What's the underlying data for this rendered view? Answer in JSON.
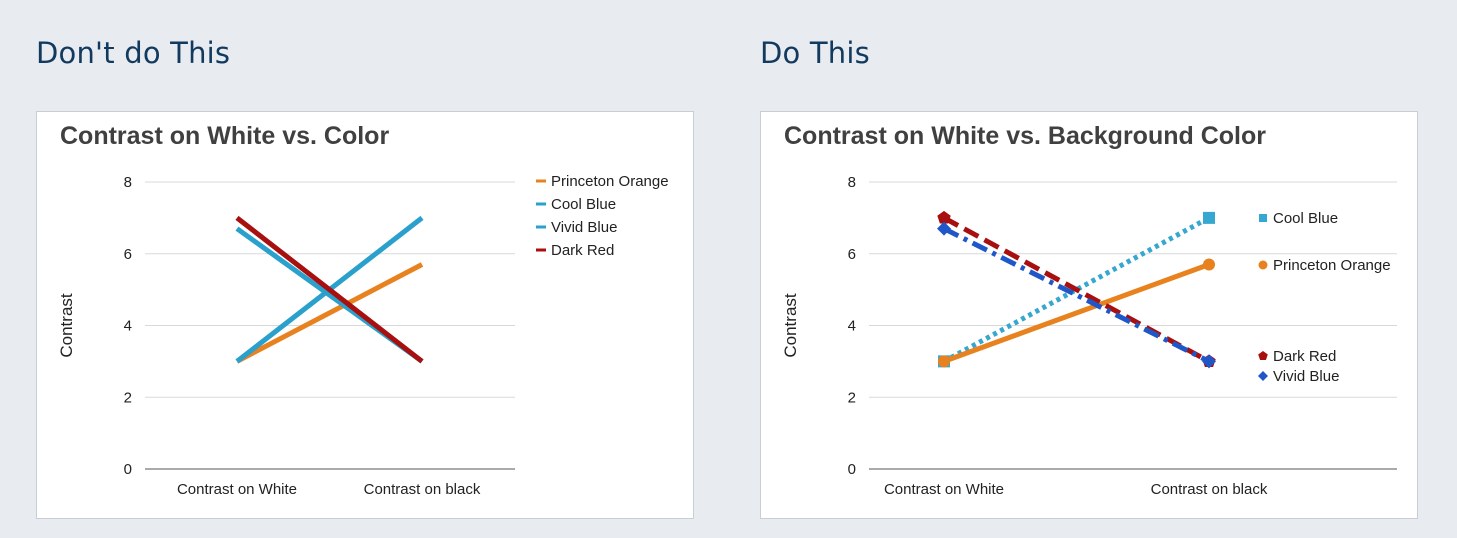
{
  "left": {
    "heading": "Don't do This",
    "chart_data": {
      "type": "line",
      "title": "Contrast on White vs. Color",
      "xlabel": "",
      "ylabel": "Contrast",
      "categories": [
        "Contrast on White",
        "Contrast on black"
      ],
      "ylim": [
        0,
        8
      ],
      "yticks": [
        0,
        2,
        4,
        6,
        8
      ],
      "grid": true,
      "legend": "right",
      "series": [
        {
          "name": "Princeton Orange",
          "values": [
            3,
            5.7
          ],
          "color": "#e8821f",
          "style": "solid",
          "marker": "none"
        },
        {
          "name": "Cool Blue",
          "values": [
            3,
            7
          ],
          "color": "#2aa0cc",
          "style": "solid",
          "marker": "none"
        },
        {
          "name": "Vivid Blue",
          "values": [
            6.7,
            3
          ],
          "color": "#2aa0cc",
          "style": "solid",
          "marker": "none"
        },
        {
          "name": "Dark Red",
          "values": [
            7,
            3
          ],
          "color": "#a80f0f",
          "style": "solid",
          "marker": "none"
        }
      ]
    }
  },
  "right": {
    "heading": "Do This",
    "chart_data": {
      "type": "line",
      "title": "Contrast on White vs. Background Color",
      "xlabel": "",
      "ylabel": "Contrast",
      "categories": [
        "Contrast on White",
        "Contrast on black"
      ],
      "ylim": [
        0,
        8
      ],
      "yticks": [
        0,
        2,
        4,
        6,
        8
      ],
      "grid": true,
      "legend": "right, labels at line ends",
      "series": [
        {
          "name": "Cool Blue",
          "values": [
            3,
            7
          ],
          "color": "#35a7d1",
          "style": "dotted",
          "marker": "square"
        },
        {
          "name": "Princeton Orange",
          "values": [
            3,
            5.7
          ],
          "color": "#e8821f",
          "style": "solid",
          "marker": "circle"
        },
        {
          "name": "Dark Red",
          "values": [
            7,
            3
          ],
          "color": "#a80f0f",
          "style": "dashed",
          "marker": "pentagon"
        },
        {
          "name": "Vivid Blue",
          "values": [
            6.7,
            3
          ],
          "color": "#1f57c8",
          "style": "dashdot",
          "marker": "diamond"
        }
      ]
    }
  }
}
